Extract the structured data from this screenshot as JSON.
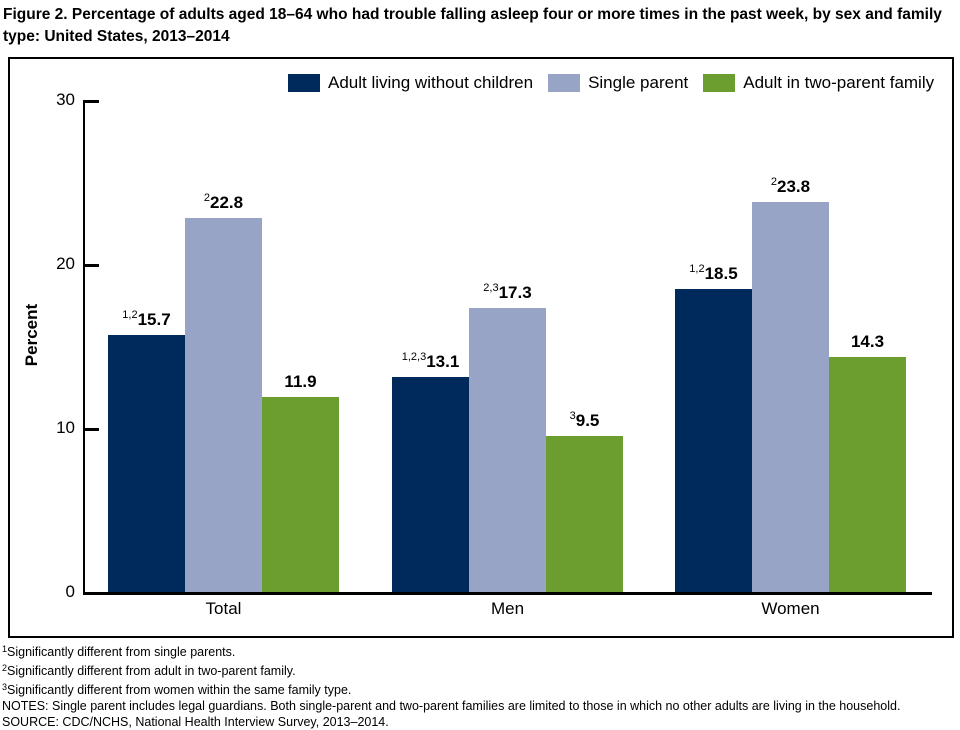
{
  "title": "Figure 2. Percentage of adults aged 18–64 who had trouble falling asleep four or more times in the past week, by sex and family type: United States, 2013–2014",
  "legend": [
    {
      "label": "Adult living without children",
      "color": "#002a5c"
    },
    {
      "label": "Single parent",
      "color": "#98a4c6"
    },
    {
      "label": "Adult in two-parent family",
      "color": "#6b9e2f"
    }
  ],
  "chart_data": {
    "type": "bar",
    "categories": [
      "Total",
      "Men",
      "Women"
    ],
    "series": [
      {
        "name": "Adult living without children",
        "color": "#002a5c",
        "values": [
          15.7,
          13.1,
          18.5
        ],
        "label_sups": [
          "1,2",
          "1,2,3",
          "1,2"
        ]
      },
      {
        "name": "Single parent",
        "color": "#98a4c6",
        "values": [
          22.8,
          17.3,
          23.8
        ],
        "label_sups": [
          "2",
          "2,3",
          "2"
        ]
      },
      {
        "name": "Adult in two-parent family",
        "color": "#6b9e2f",
        "values": [
          11.9,
          9.5,
          14.3
        ],
        "label_sups": [
          "",
          "3",
          ""
        ]
      }
    ],
    "ylabel": "Percent",
    "ylim": [
      0,
      30
    ],
    "yticks": [
      0,
      10,
      20,
      30
    ],
    "legend_position": "top",
    "grid": false
  },
  "footnotes": [
    {
      "sup": "1",
      "text": "Significantly different from single parents."
    },
    {
      "sup": "2",
      "text": "Significantly different from adult in two-parent family."
    },
    {
      "sup": "3",
      "text": "Significantly different from women within the same family type."
    },
    {
      "sup": "",
      "text": "NOTES: Single parent includes legal guardians. Both single-parent and two-parent families are limited to those in which no other adults are living in the household."
    },
    {
      "sup": "",
      "text": "SOURCE: CDC/NCHS, National Health Interview Survey, 2013–2014."
    }
  ]
}
